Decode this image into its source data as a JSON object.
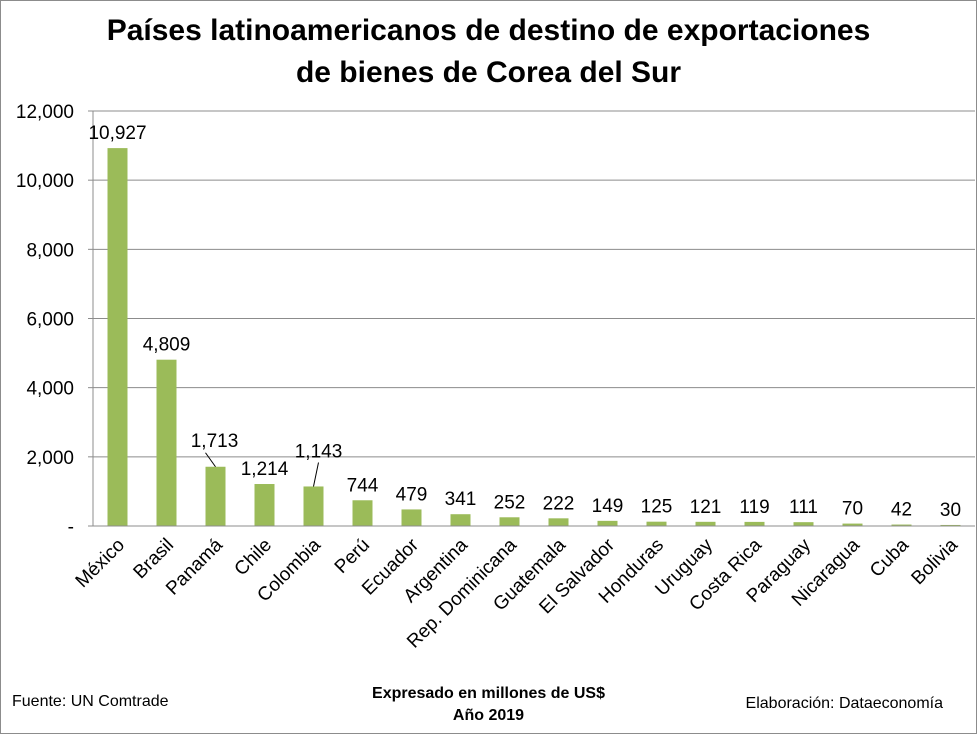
{
  "chart_data": {
    "type": "bar",
    "title_lines": [
      "Países latinoamericanos de destino de exportaciones",
      "de bienes de Corea del Sur"
    ],
    "categories": [
      "México",
      "Brasil",
      "Panamá",
      "Chile",
      "Colombia",
      "Perú",
      "Ecuador",
      "Argentina",
      "Rep. Dominicana",
      "Guatemala",
      "El Salvador",
      "Honduras",
      "Uruguay",
      "Costa Rica",
      "Paraguay",
      "Nicaragua",
      "Cuba",
      "Bolivia"
    ],
    "values": [
      10927,
      4809,
      1713,
      1214,
      1143,
      744,
      479,
      341,
      252,
      222,
      149,
      125,
      121,
      119,
      111,
      70,
      42,
      30
    ],
    "value_labels": [
      "10,927",
      "4,809",
      "1,713",
      "1,214",
      "1,143",
      "744",
      "479",
      "341",
      "252",
      "222",
      "149",
      "125",
      "121",
      "119",
      "111",
      "70",
      "42",
      "30"
    ],
    "y_ticks": [
      0,
      2000,
      4000,
      6000,
      8000,
      10000,
      12000
    ],
    "y_tick_labels": [
      "-",
      "2,000",
      "4,000",
      "6,000",
      "8,000",
      "10,000",
      "12,000"
    ],
    "ylim": [
      0,
      12000
    ],
    "grid": true,
    "legend": "none",
    "bar_color": "#9bbb59"
  },
  "footer": {
    "source": "Fuente: UN Comtrade",
    "units_line1": "Expresado en millones de US$",
    "units_line2": "Año 2019",
    "credit": "Elaboración: Dataeconomía"
  }
}
